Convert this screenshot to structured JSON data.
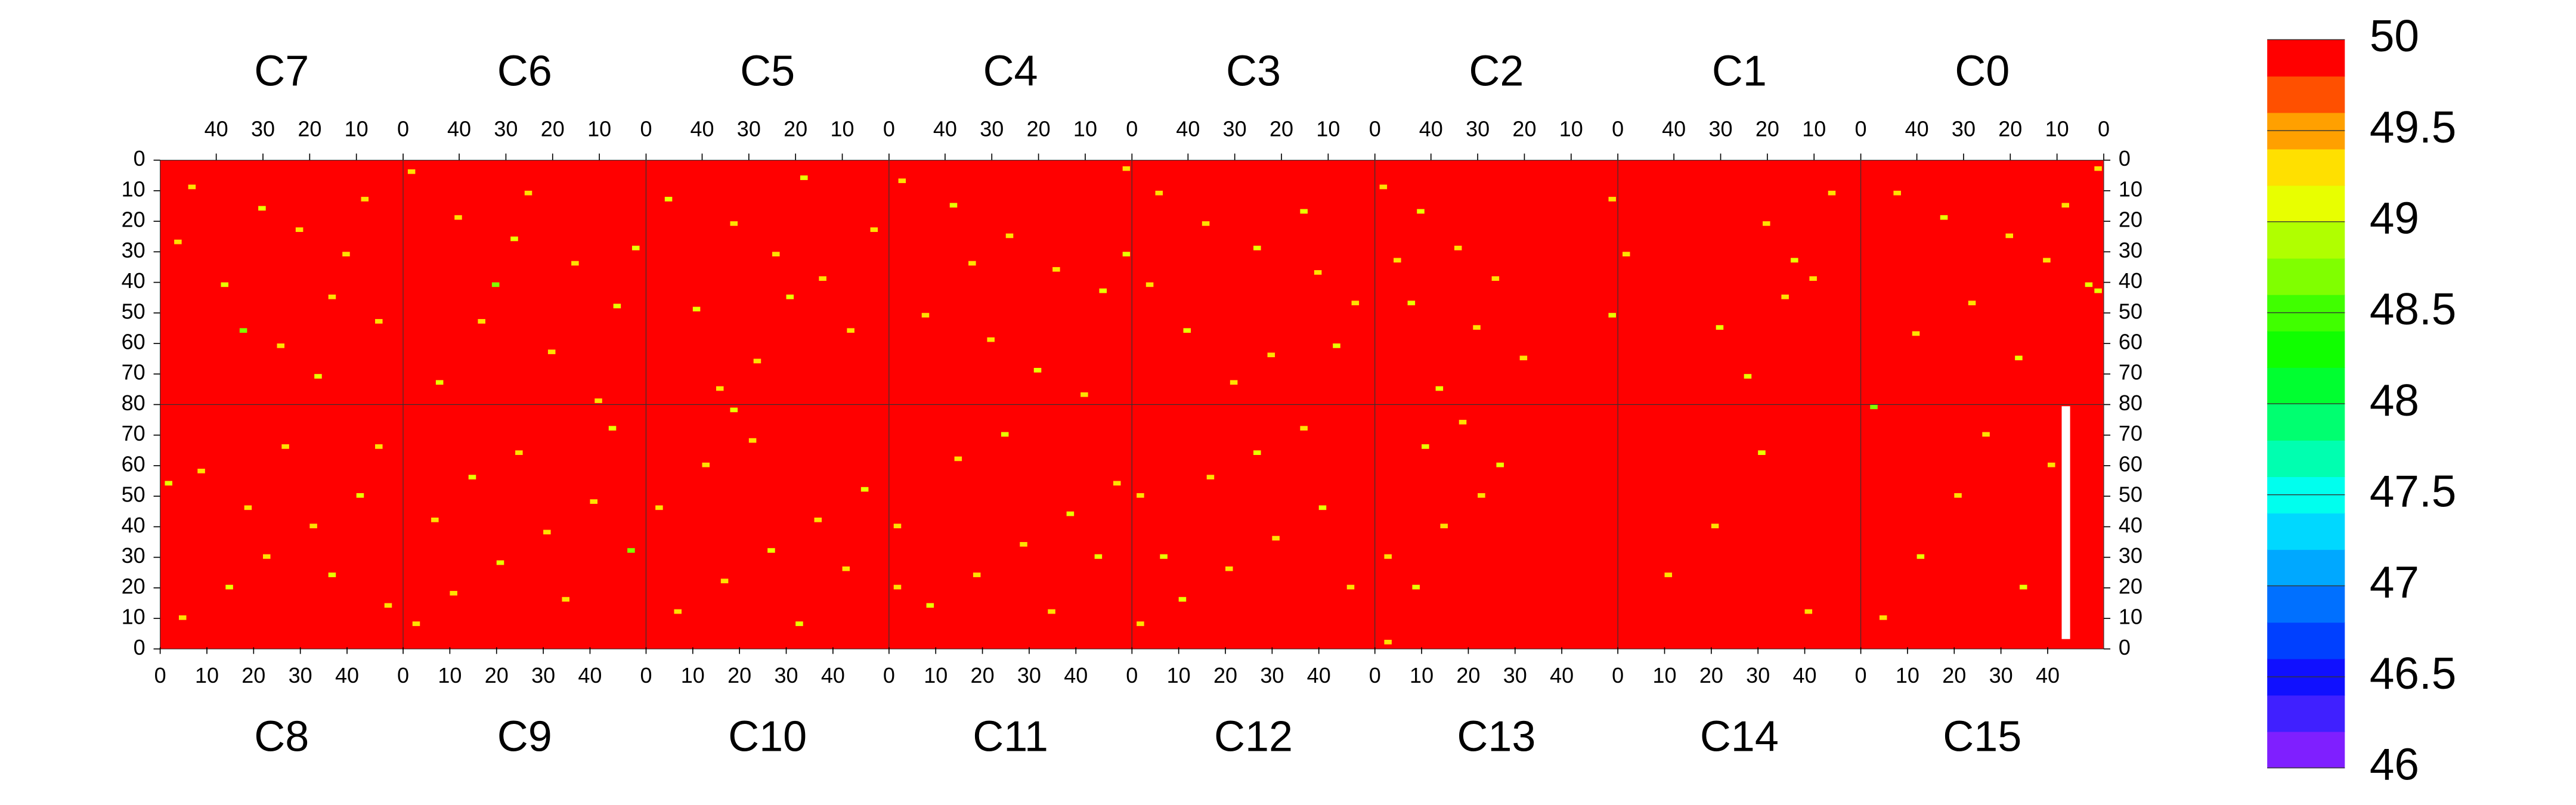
{
  "chart_data": {
    "type": "heatmap",
    "default_value": 50,
    "top": {
      "xlim": [
        52,
        0
      ],
      "xticks": [
        40,
        30,
        20,
        10,
        0
      ],
      "ylim": [
        0,
        80
      ],
      "yticks": [
        0,
        10,
        20,
        30,
        40,
        50,
        60,
        70,
        80
      ]
    },
    "bottom": {
      "xlim": [
        0,
        52
      ],
      "xticks": [
        0,
        10,
        20,
        30,
        40
      ],
      "ylim": [
        80,
        0
      ],
      "yticks": [
        70,
        60,
        50,
        40,
        30,
        20,
        10,
        0
      ]
    },
    "colorbar": {
      "lim": [
        46,
        50
      ],
      "ticks": [
        46,
        46.5,
        47,
        47.5,
        48,
        48.5,
        49,
        49.5,
        50
      ],
      "colors": [
        "#7f1fff",
        "#4020ff",
        "#1010ff",
        "#0040ff",
        "#0070ff",
        "#00a8ff",
        "#00d8ff",
        "#00ffee",
        "#00ffb0",
        "#00ff70",
        "#00ff30",
        "#10ff00",
        "#40ff00",
        "#80ff00",
        "#b0ff00",
        "#e8ff00",
        "#ffe000",
        "#ffa000",
        "#ff5000",
        "#ff0000"
      ]
    },
    "panels": [
      {
        "name": "C7",
        "cells": [
          [
            45,
            8,
            49.2
          ],
          [
            30,
            15,
            49.0
          ],
          [
            22,
            22,
            49.4
          ],
          [
            12,
            30,
            49.2
          ],
          [
            38,
            40,
            49.0
          ],
          [
            5,
            52,
            49.4
          ],
          [
            26,
            60,
            49.2
          ],
          [
            18,
            70,
            49.0
          ],
          [
            48,
            26,
            49.4
          ],
          [
            8,
            12,
            49.2
          ],
          [
            34,
            55,
            48.8
          ],
          [
            15,
            44,
            49.2
          ]
        ]
      },
      {
        "name": "C6",
        "cells": [
          [
            50,
            3,
            49.2
          ],
          [
            40,
            18,
            49.4
          ],
          [
            28,
            25,
            49.0
          ],
          [
            15,
            33,
            49.2
          ],
          [
            6,
            47,
            49.0
          ],
          [
            35,
            52,
            49.4
          ],
          [
            20,
            62,
            49.2
          ],
          [
            44,
            72,
            49.0
          ],
          [
            10,
            78,
            49.4
          ],
          [
            25,
            10,
            49.2
          ],
          [
            2,
            28,
            49.0
          ],
          [
            32,
            40,
            48.8
          ]
        ]
      },
      {
        "name": "C5",
        "cells": [
          [
            47,
            12,
            49.0
          ],
          [
            33,
            20,
            49.2
          ],
          [
            24,
            30,
            49.4
          ],
          [
            14,
            38,
            49.2
          ],
          [
            41,
            48,
            49.0
          ],
          [
            8,
            55,
            49.2
          ],
          [
            28,
            65,
            49.4
          ],
          [
            18,
            5,
            49.0
          ],
          [
            36,
            74,
            49.2
          ],
          [
            3,
            22,
            49.4
          ],
          [
            21,
            44,
            49.0
          ]
        ]
      },
      {
        "name": "C4",
        "cells": [
          [
            49,
            6,
            49.2
          ],
          [
            38,
            14,
            49.0
          ],
          [
            26,
            24,
            49.4
          ],
          [
            16,
            35,
            49.2
          ],
          [
            6,
            42,
            49.0
          ],
          [
            44,
            50,
            49.4
          ],
          [
            30,
            58,
            49.2
          ],
          [
            20,
            68,
            49.0
          ],
          [
            10,
            76,
            49.4
          ],
          [
            1,
            2,
            49.2
          ],
          [
            1,
            30,
            49.0
          ],
          [
            34,
            33,
            49.2
          ]
        ]
      },
      {
        "name": "C3",
        "cells": [
          [
            46,
            10,
            49.4
          ],
          [
            36,
            20,
            49.2
          ],
          [
            25,
            28,
            49.0
          ],
          [
            12,
            36,
            49.2
          ],
          [
            4,
            46,
            49.4
          ],
          [
            40,
            55,
            49.0
          ],
          [
            22,
            63,
            49.2
          ],
          [
            30,
            72,
            49.4
          ],
          [
            15,
            16,
            49.0
          ],
          [
            48,
            40,
            49.2
          ],
          [
            8,
            60,
            49.0
          ]
        ]
      },
      {
        "name": "C2",
        "cells": [
          [
            50,
            8,
            49.2
          ],
          [
            42,
            16,
            49.0
          ],
          [
            34,
            28,
            49.4
          ],
          [
            26,
            38,
            49.2
          ],
          [
            44,
            46,
            49.0
          ],
          [
            30,
            54,
            49.2
          ],
          [
            20,
            64,
            49.4
          ],
          [
            38,
            74,
            49.0
          ],
          [
            47,
            32,
            49.2
          ],
          [
            1,
            12,
            49.4
          ],
          [
            1,
            50,
            49.0
          ]
        ]
      },
      {
        "name": "C1",
        "cells": [
          [
            20,
            20,
            49.2
          ],
          [
            14,
            32,
            49.0
          ],
          [
            10,
            38,
            49.4
          ],
          [
            16,
            44,
            49.2
          ],
          [
            30,
            54,
            49.0
          ],
          [
            50,
            30,
            49.2
          ],
          [
            6,
            10,
            49.4
          ],
          [
            24,
            70,
            49.0
          ]
        ]
      },
      {
        "name": "C0",
        "cells": [
          [
            44,
            10,
            49.2
          ],
          [
            34,
            18,
            49.0
          ],
          [
            20,
            24,
            49.4
          ],
          [
            12,
            32,
            49.2
          ],
          [
            3,
            40,
            49.0
          ],
          [
            28,
            46,
            49.2
          ],
          [
            40,
            56,
            49.4
          ],
          [
            18,
            64,
            49.0
          ],
          [
            8,
            14,
            49.2
          ],
          [
            1,
            2,
            49.4
          ],
          [
            1,
            42,
            49.0
          ]
        ]
      },
      {
        "name": "C8",
        "cells": [
          [
            4,
            10,
            49.2
          ],
          [
            14,
            20,
            49.0
          ],
          [
            22,
            30,
            49.4
          ],
          [
            32,
            40,
            49.2
          ],
          [
            42,
            50,
            49.0
          ],
          [
            8,
            58,
            49.4
          ],
          [
            26,
            66,
            49.2
          ],
          [
            36,
            24,
            49.0
          ],
          [
            18,
            46,
            49.2
          ],
          [
            48,
            14,
            49.4
          ],
          [
            1,
            54,
            49.0
          ],
          [
            46,
            66,
            49.2
          ]
        ]
      },
      {
        "name": "C9",
        "cells": [
          [
            2,
            8,
            49.4
          ],
          [
            10,
            18,
            49.2
          ],
          [
            20,
            28,
            49.0
          ],
          [
            30,
            38,
            49.2
          ],
          [
            40,
            48,
            49.4
          ],
          [
            14,
            56,
            49.0
          ],
          [
            24,
            64,
            49.2
          ],
          [
            44,
            72,
            49.0
          ],
          [
            34,
            16,
            49.4
          ],
          [
            6,
            42,
            49.2
          ],
          [
            48,
            32,
            48.8
          ]
        ]
      },
      {
        "name": "C10",
        "cells": [
          [
            6,
            12,
            49.2
          ],
          [
            16,
            22,
            49.4
          ],
          [
            26,
            32,
            49.0
          ],
          [
            36,
            42,
            49.2
          ],
          [
            46,
            52,
            49.0
          ],
          [
            12,
            60,
            49.4
          ],
          [
            22,
            68,
            49.2
          ],
          [
            32,
            8,
            49.0
          ],
          [
            42,
            26,
            49.4
          ],
          [
            2,
            46,
            49.2
          ],
          [
            18,
            78,
            49.0
          ]
        ]
      },
      {
        "name": "C11",
        "cells": [
          [
            1,
            20,
            49.4
          ],
          [
            1,
            40,
            49.2
          ],
          [
            8,
            14,
            49.0
          ],
          [
            18,
            24,
            49.2
          ],
          [
            28,
            34,
            49.4
          ],
          [
            38,
            44,
            49.0
          ],
          [
            48,
            54,
            49.2
          ],
          [
            14,
            62,
            49.4
          ],
          [
            24,
            70,
            49.0
          ],
          [
            34,
            12,
            49.2
          ],
          [
            44,
            30,
            49.0
          ]
        ]
      },
      {
        "name": "C12",
        "cells": [
          [
            1,
            8,
            49.4
          ],
          [
            1,
            50,
            49.2
          ],
          [
            10,
            16,
            49.0
          ],
          [
            20,
            26,
            49.2
          ],
          [
            30,
            36,
            49.4
          ],
          [
            40,
            46,
            49.0
          ],
          [
            16,
            56,
            49.2
          ],
          [
            26,
            64,
            49.0
          ],
          [
            36,
            72,
            49.4
          ],
          [
            46,
            20,
            49.2
          ],
          [
            6,
            30,
            49.0
          ]
        ]
      },
      {
        "name": "C13",
        "cells": [
          [
            2,
            2,
            49.4
          ],
          [
            2,
            30,
            49.2
          ],
          [
            8,
            20,
            49.0
          ],
          [
            14,
            40,
            49.2
          ],
          [
            22,
            50,
            49.4
          ],
          [
            26,
            60,
            49.0
          ],
          [
            18,
            74,
            49.2
          ],
          [
            10,
            66,
            49.0
          ]
        ]
      },
      {
        "name": "C14",
        "cells": [
          [
            10,
            24,
            49.2
          ],
          [
            30,
            64,
            49.0
          ],
          [
            20,
            40,
            49.4
          ],
          [
            40,
            12,
            49.2
          ]
        ]
      },
      {
        "name": "C15",
        "cells": [
          [
            4,
            10,
            49.2
          ],
          [
            12,
            30,
            49.0
          ],
          [
            20,
            50,
            49.4
          ],
          [
            26,
            70,
            49.2
          ],
          [
            34,
            20,
            49.0
          ],
          [
            40,
            60,
            49.2
          ],
          [
            2,
            79,
            48.8
          ]
        ],
        "null_columns": [
          43
        ]
      }
    ]
  }
}
